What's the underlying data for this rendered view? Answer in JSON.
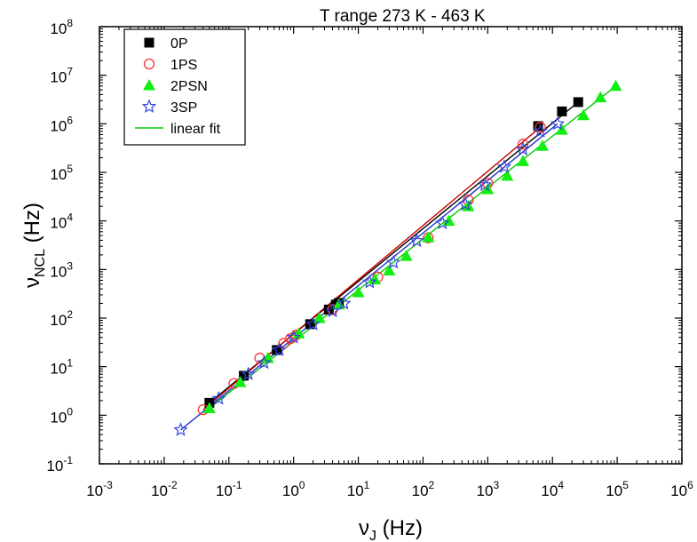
{
  "chart_data": {
    "type": "scatter",
    "title": "",
    "annotation": "T range 273 K - 463 K",
    "xlabel": {
      "base": "ν",
      "sub": "J",
      "unit": "(Hz)"
    },
    "ylabel": {
      "base": "ν",
      "sub": "NCL",
      "unit": "(Hz)"
    },
    "x_scale": "log",
    "y_scale": "log",
    "xlim": [
      0.001,
      1000000
    ],
    "ylim": [
      0.1,
      100000000
    ],
    "x_ticks": [
      {
        "base": "10",
        "exp": "-3"
      },
      {
        "base": "10",
        "exp": "-2"
      },
      {
        "base": "10",
        "exp": "-1"
      },
      {
        "base": "10",
        "exp": "0"
      },
      {
        "base": "10",
        "exp": "1"
      },
      {
        "base": "10",
        "exp": "2"
      },
      {
        "base": "10",
        "exp": "3"
      },
      {
        "base": "10",
        "exp": "4"
      },
      {
        "base": "10",
        "exp": "5"
      },
      {
        "base": "10",
        "exp": "6"
      }
    ],
    "y_ticks": [
      {
        "base": "10",
        "exp": "-1"
      },
      {
        "base": "10",
        "exp": "0"
      },
      {
        "base": "10",
        "exp": "1"
      },
      {
        "base": "10",
        "exp": "2"
      },
      {
        "base": "10",
        "exp": "3"
      },
      {
        "base": "10",
        "exp": "4"
      },
      {
        "base": "10",
        "exp": "5"
      },
      {
        "base": "10",
        "exp": "6"
      },
      {
        "base": "10",
        "exp": "7"
      },
      {
        "base": "10",
        "exp": "8"
      }
    ],
    "grid": false,
    "legend_position": "top-left",
    "series": [
      {
        "name": "0P",
        "marker": "square-filled",
        "color": "#000000",
        "x": [
          0.05,
          0.17,
          0.55,
          1.8,
          3.5,
          4.5,
          5,
          6000,
          14000,
          25000
        ],
        "y": [
          1.8,
          6.5,
          22,
          75,
          150,
          190,
          205,
          900000,
          1800000,
          2800000
        ]
      },
      {
        "name": "1PS",
        "marker": "circle-open",
        "color": "#ff3333",
        "x": [
          0.04,
          0.12,
          0.3,
          0.7,
          0.9,
          1.1,
          4,
          20,
          120,
          500,
          1000,
          3500,
          6500
        ],
        "y": [
          1.3,
          4.5,
          15,
          30,
          38,
          45,
          150,
          700,
          4500,
          27000,
          60000,
          380000,
          850000
        ],
        "show_in_legend": true
      },
      {
        "name": "2PSN",
        "marker": "triangle-filled",
        "color": "#11ee11",
        "x": [
          0.05,
          0.15,
          0.4,
          1.2,
          2.5,
          5,
          10,
          18,
          30,
          55,
          120,
          250,
          500,
          1000,
          2000,
          3500,
          7000,
          14000,
          30000,
          55000,
          95000
        ],
        "y": [
          1.4,
          4.8,
          15,
          48,
          100,
          190,
          340,
          620,
          950,
          1900,
          4600,
          10000,
          20000,
          45000,
          85000,
          170000,
          350000,
          750000,
          1500000,
          3500000,
          6000000
        ]
      },
      {
        "name": "3SP",
        "marker": "star-open",
        "color": "#3344dd",
        "x": [
          0.018,
          0.07,
          0.2,
          0.35,
          0.6,
          1,
          2,
          4,
          6,
          15,
          35,
          80,
          200,
          450,
          900,
          1800,
          3500,
          6500,
          12000
        ],
        "y": [
          0.5,
          2.2,
          7,
          12,
          22,
          40,
          75,
          140,
          200,
          550,
          1400,
          3900,
          9000,
          22000,
          55000,
          130000,
          300000,
          700000,
          1000000
        ]
      }
    ],
    "fit_lines": [
      {
        "name": "linear fit",
        "color": "#00cc00",
        "x": [
          0.05,
          95000
        ],
        "y": [
          1.4,
          6000000
        ],
        "show_in_legend": true
      },
      {
        "name": "",
        "color": "#000000",
        "x": [
          0.05,
          25000
        ],
        "y": [
          1.8,
          2800000
        ],
        "show_in_legend": false
      },
      {
        "name": "",
        "color": "#cc0000",
        "x": [
          0.04,
          6500
        ],
        "y": [
          1.3,
          850000
        ],
        "show_in_legend": false
      },
      {
        "name": "",
        "color": "#2233cc",
        "x": [
          0.018,
          12000
        ],
        "y": [
          0.5,
          1000000
        ],
        "show_in_legend": false
      }
    ],
    "legend_entries": [
      {
        "label": "0P",
        "marker": "square-filled",
        "color": "#000000"
      },
      {
        "label": "1PS",
        "marker": "circle-open",
        "color": "#ff3333"
      },
      {
        "label": "2PSN",
        "marker": "triangle-filled",
        "color": "#11ee11"
      },
      {
        "label": "3SP",
        "marker": "star-open",
        "color": "#3344dd"
      },
      {
        "label": "linear fit",
        "marker": "line",
        "color": "#00cc00"
      }
    ]
  }
}
